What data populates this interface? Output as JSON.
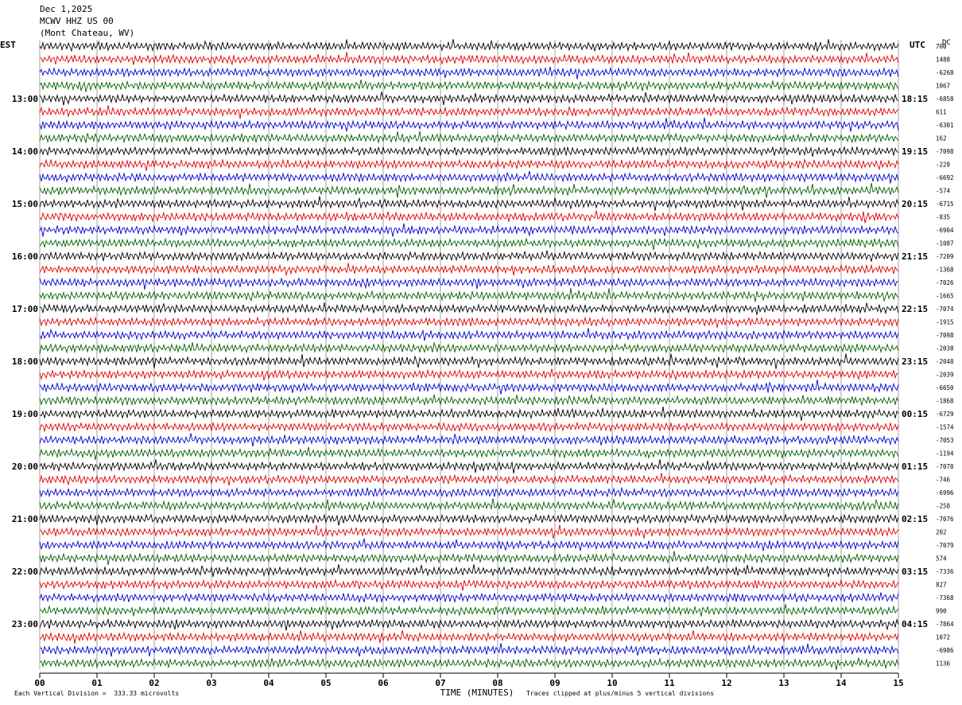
{
  "header": {
    "date": "Dec 1,2025",
    "station": "MCWV HHZ US 00",
    "location": "(Mont Chateau, WV)"
  },
  "left_zone_label": "EST",
  "right_zone_label": "UTC",
  "dc_label": "DC",
  "footer": {
    "scale": "Each Vertical Division =  333.33 microvolts",
    "clip": "Traces clipped at plus/minus 5 vertical divisions"
  },
  "colors": {
    "trace_cycle": [
      "#000000",
      "#e00000",
      "#0000d0",
      "#006000"
    ],
    "grid": "#666666"
  },
  "chart_data": {
    "type": "line",
    "title": "MCWV HHZ US 00",
    "xlabel": "TIME (MINUTES)",
    "x_ticks": [
      "00",
      "01",
      "02",
      "03",
      "04",
      "05",
      "06",
      "07",
      "08",
      "09",
      "10",
      "11",
      "12",
      "13",
      "14",
      "15"
    ],
    "xlim": [
      0,
      15
    ],
    "rows": 48,
    "left_hour_labels": [
      "13:00",
      "14:00",
      "15:00",
      "16:00",
      "17:00",
      "18:00",
      "19:00",
      "20:00",
      "21:00",
      "22:00",
      "23:00"
    ],
    "right_hour_labels": [
      "18:15",
      "19:15",
      "20:15",
      "21:15",
      "22:15",
      "23:15",
      "00:15",
      "01:15",
      "02:15",
      "03:15",
      "04:15"
    ],
    "dc_offsets": [
      "700",
      "1488",
      "-6268",
      "1067",
      "-6858",
      "611",
      "-6301",
      "162",
      "-7098",
      "-228",
      "-6692",
      "-574",
      "-6715",
      "-835",
      "-6904",
      "-1087",
      "-7209",
      "-1368",
      "-7026",
      "-1665",
      "-7074",
      "-1915",
      "-7098",
      "-2038",
      "-2048",
      "-2039",
      "-6650",
      "-1868",
      "-6729",
      "-1574",
      "-7053",
      "-1194",
      "-7078",
      "-746",
      "-6996",
      "-258",
      "-7076",
      "202",
      "-7079",
      "574",
      "-7336",
      "827",
      "-7368",
      "990",
      "-7864",
      "1072",
      "-6986",
      "1136"
    ]
  }
}
